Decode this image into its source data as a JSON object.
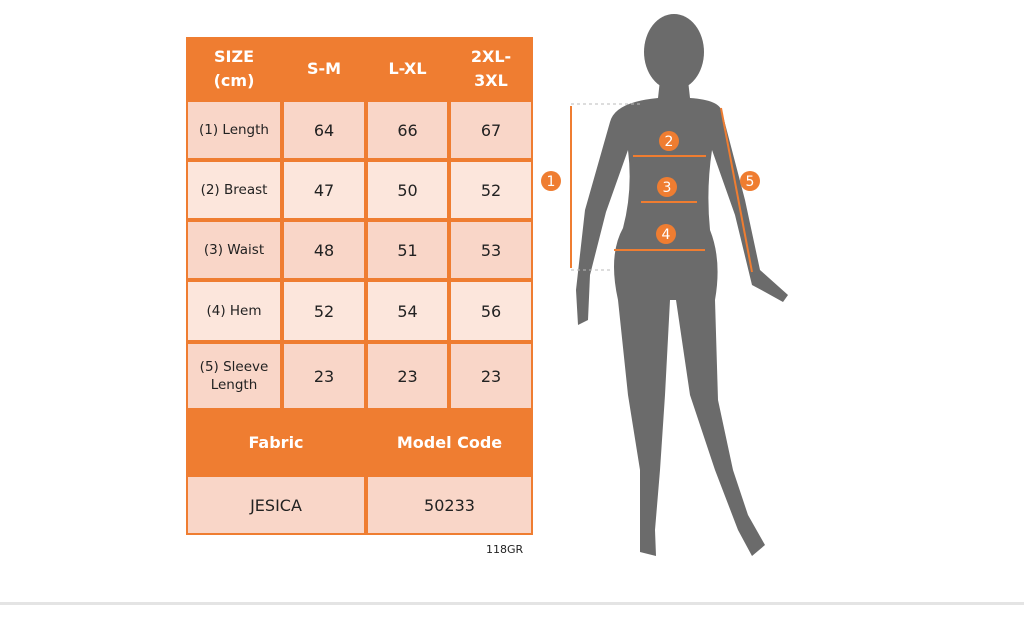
{
  "table": {
    "header": [
      "SIZE (cm)",
      "S-M",
      "L-XL",
      "2XL-3XL"
    ],
    "rows": [
      [
        "(1) Length",
        "64",
        "66",
        "67"
      ],
      [
        "(2) Breast",
        "47",
        "50",
        "52"
      ],
      [
        "(3) Waist",
        "48",
        "51",
        "53"
      ],
      [
        "(4) Hem",
        "52",
        "54",
        "56"
      ],
      [
        "(5) Sleeve Length",
        "23",
        "23",
        "23"
      ]
    ],
    "footer_header": [
      "Fabric",
      "Model Code"
    ],
    "footer_values": [
      "JESICA",
      "50233"
    ]
  },
  "code": "118GR",
  "figure": {
    "markers": [
      "1",
      "2",
      "3",
      "4",
      "5"
    ]
  }
}
